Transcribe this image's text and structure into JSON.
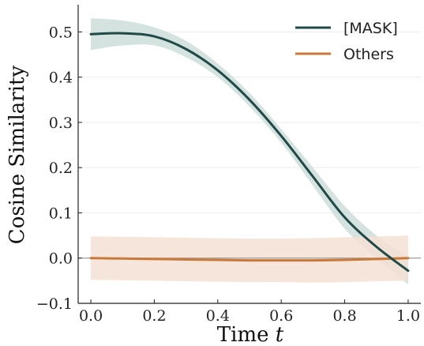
{
  "chart_data": {
    "type": "line",
    "xlabel": "Time",
    "xlabel_var": "t",
    "ylabel": "Cosine Similarity",
    "xlim": [
      -0.04,
      1.04
    ],
    "ylim": [
      -0.1,
      0.56
    ],
    "xticks": [
      0.0,
      0.2,
      0.4,
      0.6,
      0.8,
      1.0
    ],
    "xtick_labels": [
      "0.0",
      "0.2",
      "0.4",
      "0.6",
      "0.8",
      "1.0"
    ],
    "yticks": [
      -0.1,
      0.0,
      0.1,
      0.2,
      0.3,
      0.4,
      0.5
    ],
    "ytick_labels": [
      "−0.1",
      "0.0",
      "0.1",
      "0.2",
      "0.3",
      "0.4",
      "0.5"
    ],
    "grid": "horizontal",
    "reference_line_y": 0.0,
    "legend_position": "top-right",
    "series": [
      {
        "name": "[MASK]",
        "color": "#1f4a47",
        "band_color": "#cddddb",
        "x": [
          0.0,
          0.1,
          0.2,
          0.3,
          0.4,
          0.5,
          0.6,
          0.7,
          0.8,
          0.9,
          1.0
        ],
        "values": [
          0.495,
          0.497,
          0.49,
          0.462,
          0.415,
          0.35,
          0.27,
          0.18,
          0.09,
          0.025,
          -0.028
        ],
        "band_upper": [
          0.53,
          0.525,
          0.51,
          0.48,
          0.43,
          0.365,
          0.285,
          0.2,
          0.115,
          0.05,
          0.002
        ],
        "band_lower": [
          0.46,
          0.47,
          0.47,
          0.444,
          0.4,
          0.335,
          0.255,
          0.16,
          0.065,
          0.0,
          -0.058
        ]
      },
      {
        "name": "Others",
        "color": "#c97a3a",
        "band_color": "#f4e1d4",
        "x": [
          0.0,
          0.1,
          0.2,
          0.3,
          0.4,
          0.5,
          0.6,
          0.7,
          0.8,
          0.9,
          1.0
        ],
        "values": [
          0.0,
          -0.001,
          -0.002,
          -0.003,
          -0.004,
          -0.005,
          -0.005,
          -0.005,
          -0.004,
          -0.002,
          0.0
        ],
        "band_upper": [
          0.048,
          0.047,
          0.046,
          0.045,
          0.044,
          0.043,
          0.043,
          0.044,
          0.046,
          0.048,
          0.05
        ],
        "band_lower": [
          -0.048,
          -0.049,
          -0.05,
          -0.051,
          -0.052,
          -0.053,
          -0.053,
          -0.054,
          -0.053,
          -0.051,
          -0.05
        ]
      }
    ]
  }
}
